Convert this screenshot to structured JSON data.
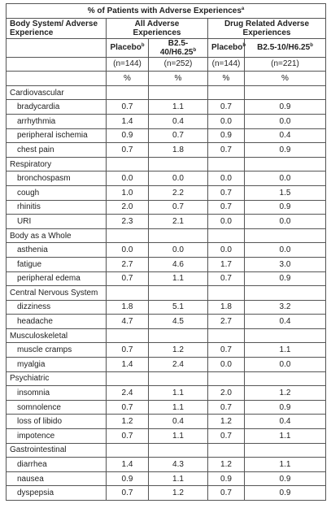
{
  "table": {
    "title": {
      "text": "% of Patients with Adverse Experiences",
      "sup": "a"
    },
    "header": [
      "Body System/ Adverse Experience",
      "All Adverse Experiences",
      "Drug Related Adverse Experiences"
    ],
    "subheader": [
      {
        "text": "Placebo",
        "sup": "b"
      },
      {
        "text": "B2.5-40/H6.25",
        "sup": "b"
      },
      {
        "text": "Placebo",
        "sup": "b"
      },
      {
        "text": "B2.5-10/H6.25",
        "sup": "b"
      }
    ],
    "counts": [
      "(n=144)",
      "(n=252)",
      "(n=144)",
      "(n=221)"
    ],
    "units": [
      "%",
      "%",
      "%",
      "%"
    ],
    "groups": [
      {
        "name": "Cardiovascular",
        "rows": [
          {
            "label": "bradycardia",
            "values": [
              "0.7",
              "1.1",
              "0.7",
              "0.9"
            ]
          },
          {
            "label": "arrhythmia",
            "values": [
              "1.4",
              "0.4",
              "0.0",
              "0.0"
            ]
          },
          {
            "label": "peripheral ischemia",
            "values": [
              "0.9",
              "0.7",
              "0.9",
              "0.4"
            ]
          },
          {
            "label": "chest pain",
            "values": [
              "0.7",
              "1.8",
              "0.7",
              "0.9"
            ]
          }
        ]
      },
      {
        "name": "Respiratory",
        "rows": [
          {
            "label": "bronchospasm",
            "values": [
              "0.0",
              "0.0",
              "0.0",
              "0.0"
            ]
          },
          {
            "label": "cough",
            "values": [
              "1.0",
              "2.2",
              "0.7",
              "1.5"
            ]
          },
          {
            "label": "rhinitis",
            "values": [
              "2.0",
              "0.7",
              "0.7",
              "0.9"
            ]
          },
          {
            "label": "URI",
            "values": [
              "2.3",
              "2.1",
              "0.0",
              "0.0"
            ]
          }
        ]
      },
      {
        "name": "Body as a Whole",
        "rows": [
          {
            "label": "asthenia",
            "values": [
              "0.0",
              "0.0",
              "0.0",
              "0.0"
            ]
          },
          {
            "label": "fatigue",
            "values": [
              "2.7",
              "4.6",
              "1.7",
              "3.0"
            ]
          },
          {
            "label": "peripheral edema",
            "values": [
              "0.7",
              "1.1",
              "0.7",
              "0.9"
            ]
          }
        ]
      },
      {
        "name": "Central Nervous System",
        "rows": [
          {
            "label": "dizziness",
            "values": [
              "1.8",
              "5.1",
              "1.8",
              "3.2"
            ]
          },
          {
            "label": "headache",
            "values": [
              "4.7",
              "4.5",
              "2.7",
              "0.4"
            ]
          }
        ]
      },
      {
        "name": "Musculoskeletal",
        "rows": [
          {
            "label": "muscle cramps",
            "values": [
              "0.7",
              "1.2",
              "0.7",
              "1.1"
            ]
          },
          {
            "label": "myalgia",
            "values": [
              "1.4",
              "2.4",
              "0.0",
              "0.0"
            ]
          }
        ]
      },
      {
        "name": "Psychiatric",
        "rows": [
          {
            "label": "insomnia",
            "values": [
              "2.4",
              "1.1",
              "2.0",
              "1.2"
            ]
          },
          {
            "label": "somnolence",
            "values": [
              "0.7",
              "1.1",
              "0.7",
              "0.9"
            ]
          },
          {
            "label": "loss of libido",
            "values": [
              "1.2",
              "0.4",
              "1.2",
              "0.4"
            ]
          },
          {
            "label": "impotence",
            "values": [
              "0.7",
              "1.1",
              "0.7",
              "1.1"
            ]
          }
        ]
      },
      {
        "name": "Gastrointestinal",
        "rows": [
          {
            "label": "diarrhea",
            "values": [
              "1.4",
              "4.3",
              "1.2",
              "1.1"
            ]
          },
          {
            "label": "nausea",
            "values": [
              "0.9",
              "1.1",
              "0.9",
              "0.9"
            ]
          },
          {
            "label": "dyspepsia",
            "values": [
              "0.7",
              "1.2",
              "0.7",
              "0.9"
            ]
          }
        ]
      }
    ]
  }
}
